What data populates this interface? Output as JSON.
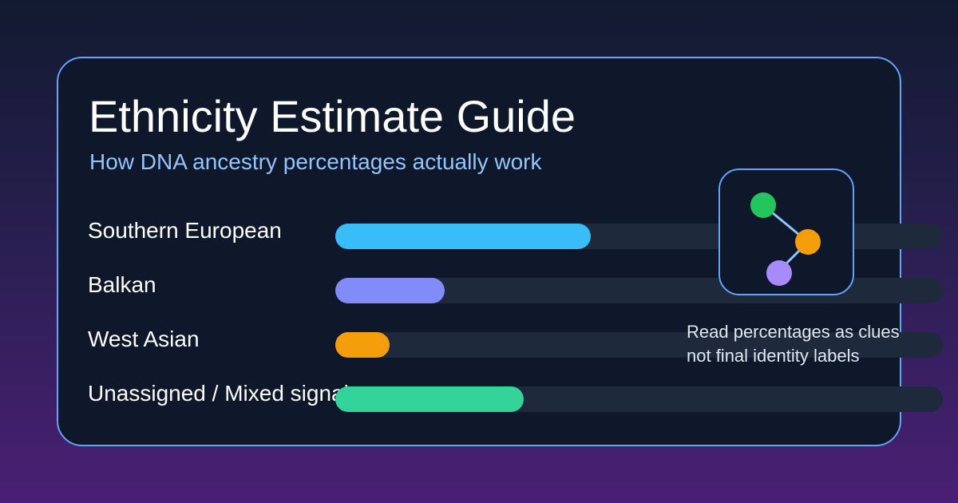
{
  "header": {
    "title": "Ethnicity Estimate Guide",
    "subtitle": "How DNA ancestry percentages actually work"
  },
  "chart_data": {
    "type": "bar",
    "orientation": "horizontal",
    "categories": [
      "Southern European",
      "Balkan",
      "West Asian",
      "Unassigned / Mixed signal"
    ],
    "values": [
      42,
      18,
      9,
      31
    ],
    "unit": "%",
    "xlim": [
      0,
      100
    ],
    "colors": [
      "#38bdf8",
      "#818cf8",
      "#f59e0b",
      "#34d399"
    ],
    "track_color": "#1e293b"
  },
  "icon": {
    "name": "ancestry-tree-icon",
    "node_colors": [
      "#22c55e",
      "#f59e0b",
      "#a78bfa"
    ],
    "line_color": "#93c5fd"
  },
  "note": {
    "line1": "Read percentages as clues",
    "line2": "not final identity labels"
  }
}
